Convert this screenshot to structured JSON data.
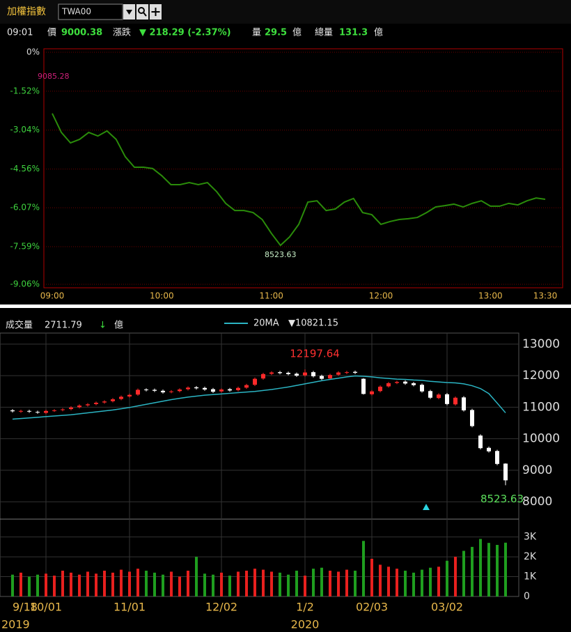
{
  "header": {
    "title": "加權指數",
    "symbol": "TWA00"
  },
  "quote": {
    "time": "09:01",
    "price_label": "價",
    "price": "9000.38",
    "change_label": "漲跌",
    "change": "▼ 218.29 (-2.37%)",
    "volume_label": "量",
    "volume": "29.5",
    "volume_unit": "億",
    "total_label": "總量",
    "total": "131.3",
    "total_unit": "億"
  },
  "chart_data": [
    {
      "type": "line",
      "categories": [
        "09:00",
        null,
        null,
        null,
        null,
        null,
        null,
        null,
        null,
        null,
        null,
        null,
        "10:00",
        null,
        null,
        null,
        null,
        null,
        null,
        null,
        null,
        null,
        null,
        null,
        "11:00",
        null,
        null,
        null,
        null,
        null,
        null,
        null,
        null,
        null,
        null,
        null,
        "12:00",
        null,
        null,
        null,
        null,
        null,
        null,
        null,
        null,
        null,
        null,
        null,
        "13:00",
        null,
        null,
        null,
        null,
        null,
        "13:30"
      ],
      "series": [
        {
          "color": "#2a8c0a",
          "values": [
            -2.39,
            -3.13,
            -3.54,
            -3.4,
            -3.13,
            -3.27,
            -3.07,
            -3.4,
            -4.08,
            -4.49,
            -4.49,
            -4.54,
            -4.82,
            -5.17,
            -5.17,
            -5.09,
            -5.17,
            -5.09,
            -5.44,
            -5.9,
            -6.18,
            -6.18,
            -6.26,
            -6.53,
            -7.07,
            -7.54,
            -7.21,
            -6.72,
            -5.85,
            -5.8,
            -6.18,
            -6.12,
            -5.85,
            -5.71,
            -6.26,
            -6.34,
            -6.72,
            -6.61,
            -6.53,
            -6.5,
            -6.45,
            -6.26,
            -6.04,
            -5.99,
            -5.93,
            -6.04,
            -5.9,
            -5.8,
            -6.01,
            -6.01,
            -5.9,
            -5.96,
            -5.8,
            -5.69,
            -5.74
          ]
        }
      ],
      "ylim": [
        -9.06,
        0
      ],
      "yticks": [
        {
          "value": 0,
          "label": "0%"
        },
        {
          "value": -1.52,
          "label": "-1.52%"
        },
        {
          "value": -3.04,
          "label": "-3.04%"
        },
        {
          "value": -4.56,
          "label": "-4.56%"
        },
        {
          "value": -6.07,
          "label": "-6.07%"
        },
        {
          "value": -7.59,
          "label": "-7.59%"
        },
        {
          "value": -9.06,
          "label": "-9.06%"
        }
      ],
      "grid": true,
      "high_label": "9085.28",
      "low_label": "8523.63"
    },
    {
      "type": "candlestick",
      "categories": [
        "9/18",
        null,
        null,
        null,
        "10/01",
        null,
        null,
        null,
        null,
        null,
        null,
        null,
        null,
        null,
        "11/01",
        null,
        null,
        null,
        null,
        null,
        null,
        null,
        null,
        null,
        null,
        "12/02",
        null,
        null,
        null,
        null,
        null,
        null,
        null,
        null,
        null,
        "1/2",
        null,
        null,
        null,
        null,
        null,
        null,
        null,
        "02/03",
        null,
        null,
        null,
        null,
        null,
        null,
        null,
        null,
        "03/02",
        null,
        null,
        null,
        null,
        null,
        null,
        null
      ],
      "year_labels": [
        "2019",
        null,
        null,
        null,
        null,
        null,
        null,
        null,
        null,
        null,
        null,
        null,
        null,
        null,
        null,
        null,
        null,
        null,
        null,
        null,
        null,
        null,
        null,
        null,
        null,
        null,
        null,
        null,
        null,
        null,
        null,
        null,
        null,
        null,
        null,
        "2020",
        null,
        null,
        null,
        null,
        null,
        null,
        null,
        null,
        null,
        null,
        null,
        null,
        null,
        null,
        null,
        null,
        null,
        null,
        null,
        null,
        null,
        null,
        null,
        null
      ],
      "open": [
        10900,
        10860,
        10880,
        10850,
        10820,
        10890,
        10910,
        10940,
        11000,
        11060,
        11100,
        11150,
        11190,
        11260,
        11340,
        11400,
        11560,
        11550,
        11520,
        11480,
        11510,
        11570,
        11630,
        11610,
        11570,
        11500,
        11570,
        11540,
        11620,
        11710,
        11910,
        12060,
        12110,
        12090,
        12060,
        12010,
        12110,
        11990,
        11910,
        12030,
        12090,
        12120,
        11900,
        11410,
        11510,
        11660,
        11770,
        11810,
        11760,
        11710,
        11510,
        11290,
        11410,
        11090,
        11310,
        10910,
        10100,
        9710,
        9610,
        9210
      ],
      "high": [
        10940,
        10920,
        10920,
        10890,
        10920,
        10940,
        10970,
        11030,
        11090,
        11130,
        11180,
        11220,
        11290,
        11370,
        11430,
        11590,
        11600,
        11590,
        11560,
        11540,
        11600,
        11660,
        11670,
        11650,
        11610,
        11600,
        11610,
        11650,
        11740,
        11940,
        12090,
        12140,
        12150,
        12130,
        12100,
        12197.64,
        12150,
        12030,
        12060,
        12140,
        12150,
        12160,
        11920,
        11540,
        11690,
        11800,
        11840,
        11850,
        11800,
        11750,
        11550,
        11440,
        11450,
        11340,
        11350,
        10950,
        10140,
        9750,
        9650,
        9220
      ],
      "low": [
        10830,
        10820,
        10820,
        10790,
        10780,
        10850,
        10870,
        10900,
        10960,
        11020,
        11060,
        11110,
        11150,
        11220,
        11300,
        11360,
        11500,
        11480,
        11430,
        11440,
        11470,
        11530,
        11560,
        11520,
        11450,
        11460,
        11490,
        11500,
        11580,
        11670,
        11870,
        12020,
        12040,
        12010,
        11960,
        11970,
        11940,
        11860,
        11870,
        11990,
        12050,
        12050,
        11400,
        11370,
        11470,
        11620,
        11730,
        11710,
        11660,
        11460,
        11260,
        11250,
        11060,
        11050,
        10860,
        10360,
        9660,
        9560,
        9160,
        8523.63
      ],
      "close": [
        10870,
        10880,
        10860,
        10830,
        10880,
        10900,
        10930,
        10990,
        11050,
        11090,
        11140,
        11180,
        11250,
        11330,
        11390,
        11550,
        11540,
        11520,
        11470,
        11500,
        11560,
        11620,
        11600,
        11560,
        11490,
        11560,
        11530,
        11610,
        11700,
        11900,
        12050,
        12100,
        12080,
        12050,
        12000,
        12100,
        11980,
        11900,
        12020,
        12100,
        12110,
        12090,
        11420,
        11500,
        11650,
        11760,
        11800,
        11750,
        11700,
        11500,
        11300,
        11400,
        11100,
        11300,
        10900,
        10400,
        9700,
        9600,
        9200,
        8680
      ],
      "up_color": "#ff2a2a",
      "down_color": "#ffffff",
      "ma": {
        "name": "20MA",
        "color": "#2bb5c4",
        "last_label": "▼10821.15",
        "values": [
          10620,
          10640,
          10660,
          10680,
          10700,
          10720,
          10740,
          10760,
          10790,
          10820,
          10850,
          10880,
          10910,
          10950,
          10990,
          11040,
          11090,
          11140,
          11190,
          11240,
          11280,
          11320,
          11350,
          11380,
          11400,
          11420,
          11440,
          11460,
          11480,
          11500,
          11530,
          11560,
          11600,
          11640,
          11690,
          11740,
          11790,
          11840,
          11880,
          11920,
          11960,
          11990,
          11980,
          11960,
          11930,
          11910,
          11890,
          11880,
          11860,
          11850,
          11820,
          11800,
          11780,
          11770,
          11740,
          11680,
          11590,
          11430,
          11130,
          10821.15
        ]
      },
      "ylim": [
        7450,
        13350
      ],
      "yticks": [
        8000,
        9000,
        10000,
        11000,
        12000,
        13000
      ],
      "grid": true,
      "high_label": "12197.64",
      "low_label": "8523.63",
      "volume": {
        "title": "成交量",
        "last": "2711.79",
        "arrow": "↓",
        "unit": "億",
        "up_color": "#e8201e",
        "down_color": "#1f9e1f",
        "values": [
          1100,
          1200,
          1000,
          1100,
          1150,
          1050,
          1300,
          1200,
          1100,
          1250,
          1150,
          1300,
          1200,
          1350,
          1250,
          1400,
          1300,
          1200,
          1100,
          1250,
          1000,
          1300,
          2000,
          1150,
          1100,
          1200,
          1050,
          1250,
          1300,
          1400,
          1350,
          1250,
          1200,
          1100,
          1300,
          1050,
          1400,
          1450,
          1300,
          1250,
          1350,
          1300,
          2800,
          1900,
          1600,
          1500,
          1400,
          1300,
          1200,
          1350,
          1450,
          1500,
          1800,
          2000,
          2300,
          2500,
          2900,
          2700,
          2600,
          2711.79
        ],
        "ylim": [
          0,
          3900
        ],
        "yticks": [
          0,
          {
            "value": 1000,
            "label": "1K"
          },
          {
            "value": 2000,
            "label": "2K"
          },
          {
            "value": 3000,
            "label": "3K"
          }
        ]
      }
    }
  ]
}
